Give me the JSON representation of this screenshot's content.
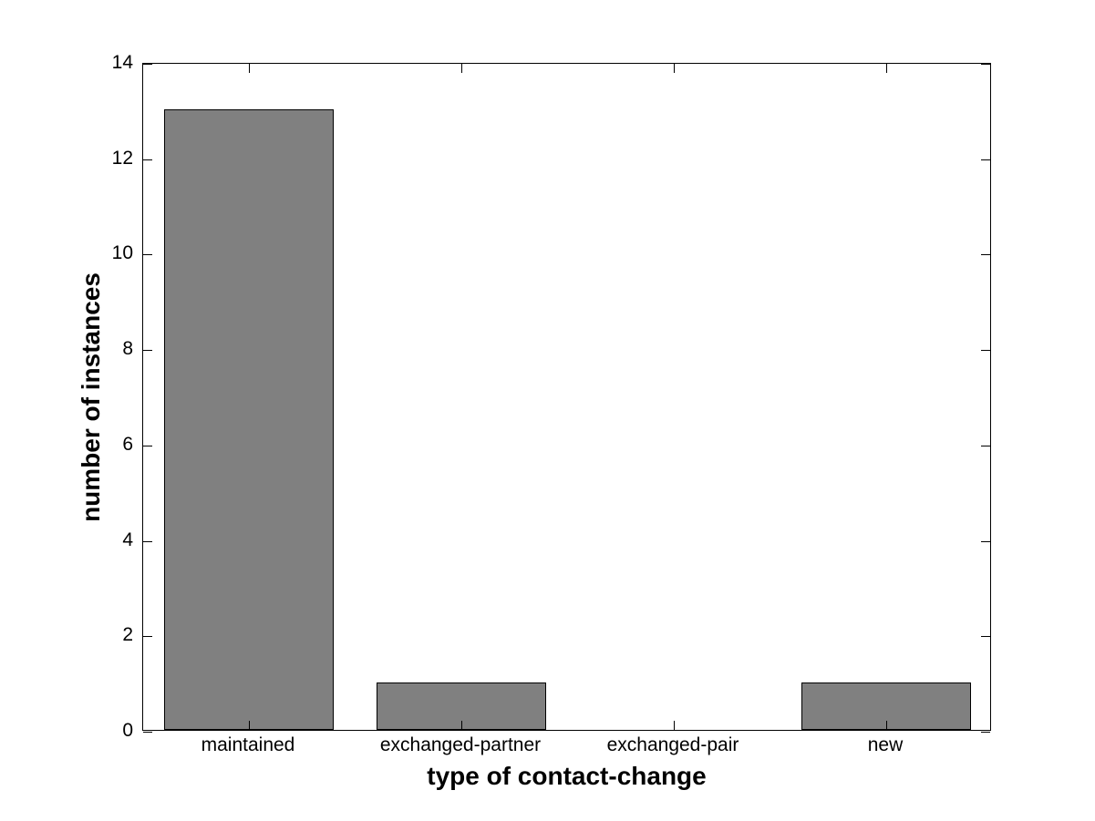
{
  "chart_data": {
    "type": "bar",
    "categories": [
      "maintained",
      "exchanged-partner",
      "exchanged-pair",
      "new"
    ],
    "values": [
      13,
      1,
      0,
      1
    ],
    "xlabel": "type of contact-change",
    "ylabel": "number of instances",
    "ylim": [
      0,
      14
    ],
    "yticks": [
      0,
      2,
      4,
      6,
      8,
      10,
      12,
      14
    ],
    "bar_width_fraction": 0.8,
    "bar_fill_color": "#808080",
    "bar_edge_color": "#000000",
    "axis_color": "#000000",
    "background_color": "#ffffff",
    "grid": "off",
    "legend": "none"
  }
}
